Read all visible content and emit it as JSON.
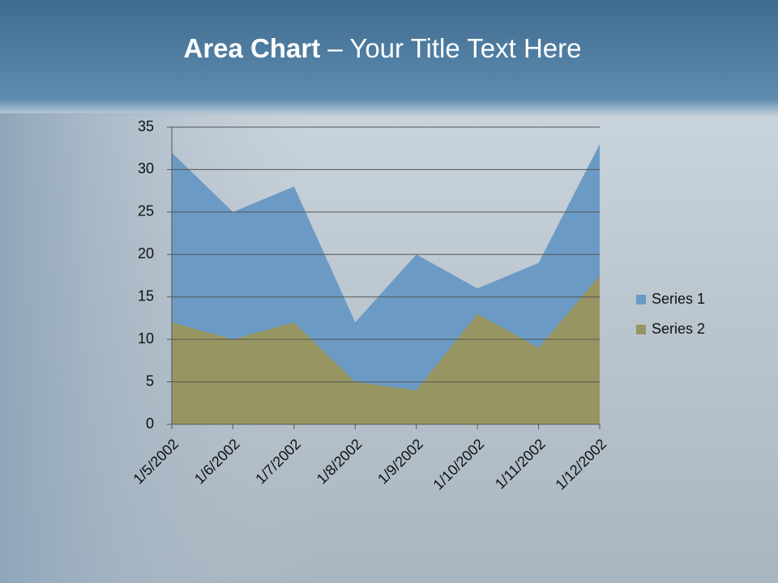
{
  "chart_data": {
    "type": "area",
    "title": [
      "Area Chart",
      "– Your Title Text Here"
    ],
    "categories": [
      "1/5/2002",
      "1/6/2002",
      "1/7/2002",
      "1/8/2002",
      "1/9/2002",
      "1/10/2002",
      "1/11/2002",
      "1/12/2002"
    ],
    "series": [
      {
        "name": "Series 1",
        "color": "#6b9ac4",
        "values": [
          32,
          25,
          28,
          12,
          20,
          16,
          19,
          33
        ]
      },
      {
        "name": "Series 2",
        "color": "#979663",
        "values": [
          12,
          10,
          12,
          5,
          4,
          13,
          9,
          17.5
        ]
      }
    ],
    "ylim": [
      0,
      35
    ],
    "yticks": [
      0,
      5,
      10,
      15,
      20,
      25,
      30,
      35
    ],
    "grid": true,
    "legend": "right"
  }
}
